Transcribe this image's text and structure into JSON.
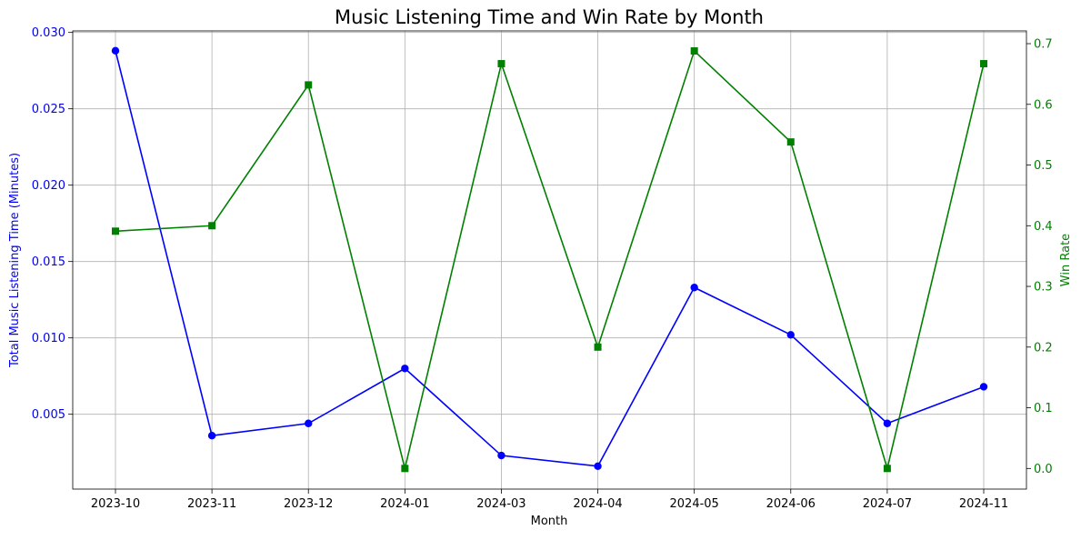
{
  "chart_data": {
    "type": "line",
    "title": "Music Listening Time and Win Rate by Month",
    "xlabel": "Month",
    "ylabel_left": "Total Music Listening Time (Minutes)",
    "ylabel_right": "Win Rate",
    "categories": [
      "2023-10",
      "2023-11",
      "2023-12",
      "2024-01",
      "2024-03",
      "2024-04",
      "2024-05",
      "2024-06",
      "2024-07",
      "2024-11"
    ],
    "left_axis": {
      "ylim": [
        0.0001,
        0.0301
      ],
      "ticks": [
        0.005,
        0.01,
        0.015,
        0.02,
        0.025,
        0.03
      ],
      "tick_labels": [
        "0.005",
        "0.010",
        "0.015",
        "0.020",
        "0.025",
        "0.030"
      ],
      "color": "#0000ff"
    },
    "right_axis": {
      "ylim": [
        -0.034,
        0.721
      ],
      "ticks": [
        0.0,
        0.1,
        0.2,
        0.3,
        0.4,
        0.5,
        0.6,
        0.7
      ],
      "tick_labels": [
        "0.0",
        "0.1",
        "0.2",
        "0.3",
        "0.4",
        "0.5",
        "0.6",
        "0.7"
      ],
      "color": "#008000"
    },
    "grid": true,
    "series": [
      {
        "name": "Total Music Listening Time (Minutes)",
        "axis": "left",
        "color": "#0000ff",
        "marker": "circle",
        "values": [
          0.0288,
          0.0036,
          0.0044,
          0.008,
          0.0023,
          0.0016,
          0.0133,
          0.0102,
          0.0044,
          0.0068
        ]
      },
      {
        "name": "Win Rate",
        "axis": "right",
        "color": "#008000",
        "marker": "square",
        "values": [
          0.391,
          0.4,
          0.632,
          0.0,
          0.667,
          0.2,
          0.688,
          0.538,
          0.0,
          0.667
        ]
      }
    ]
  }
}
